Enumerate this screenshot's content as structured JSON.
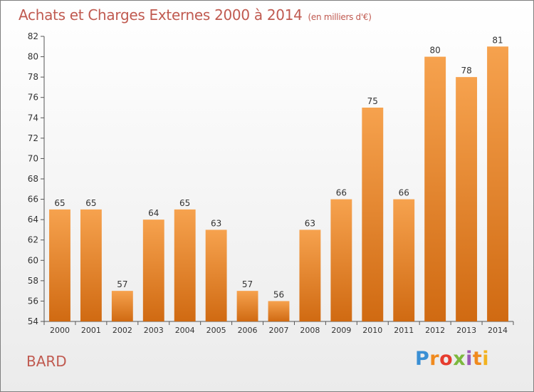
{
  "chart_data": {
    "type": "bar",
    "title": "Achats et Charges Externes 2000 à 2014",
    "subtitle": "(en milliers d'€)",
    "categories": [
      "2000",
      "2001",
      "2002",
      "2003",
      "2004",
      "2005",
      "2006",
      "2007",
      "2008",
      "2009",
      "2010",
      "2011",
      "2012",
      "2013",
      "2014"
    ],
    "values": [
      65,
      65,
      57,
      64,
      65,
      63,
      57,
      56,
      63,
      66,
      75,
      66,
      80,
      78,
      81
    ],
    "ylim": [
      54,
      82
    ],
    "yticks": [
      54,
      56,
      58,
      60,
      62,
      64,
      66,
      68,
      70,
      72,
      74,
      76,
      78,
      80,
      82
    ],
    "grid": false,
    "bar_color_top": "#f6a24e",
    "bar_color_bottom": "#d06a12"
  },
  "footer": {
    "label": "BARD"
  },
  "logo": {
    "letters": [
      "P",
      "r",
      "o",
      "x",
      "i",
      "t",
      "i"
    ]
  }
}
